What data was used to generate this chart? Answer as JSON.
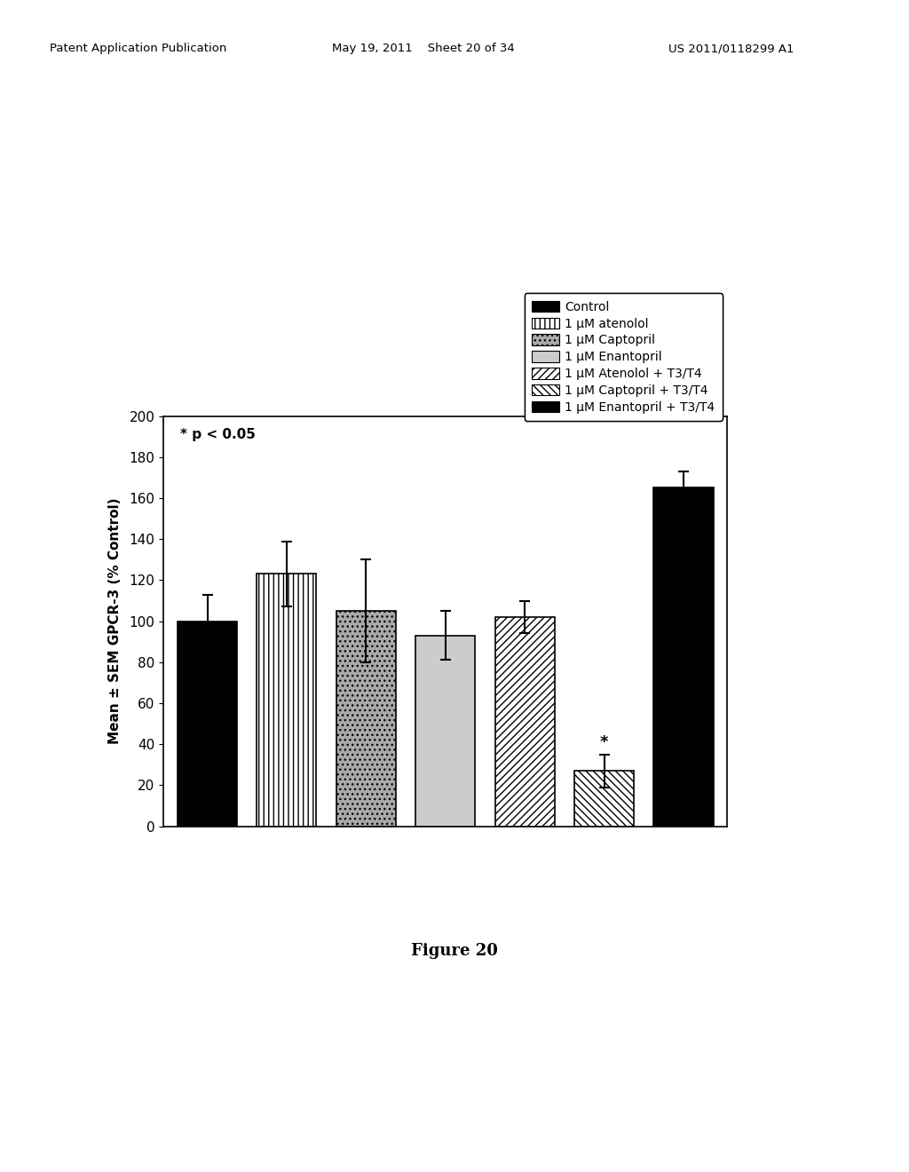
{
  "bars": [
    {
      "label": "Control",
      "value": 100,
      "error": 13,
      "color": "black",
      "hatch": null
    },
    {
      "label": "1 μM atenolol",
      "value": 123,
      "error": 16,
      "color": "white",
      "hatch": "|||"
    },
    {
      "label": "1 μM Captopril",
      "value": 105,
      "error": 25,
      "color": "darkgray",
      "hatch": "..."
    },
    {
      "label": "1 μM Enantopril",
      "value": 93,
      "error": 12,
      "color": "#cccccc",
      "hatch": null
    },
    {
      "label": "1 μM Atenolol + T3/T4",
      "value": 102,
      "error": 8,
      "color": "white",
      "hatch": "////"
    },
    {
      "label": "1 μM Captopril + T3/T4",
      "value": 27,
      "error": 8,
      "color": "white",
      "hatch": "\\\\\\\\"
    },
    {
      "label": "1 μM Enantopril + T3/T4",
      "value": 165,
      "error": 8,
      "color": "black",
      "hatch": null
    }
  ],
  "ylim": [
    0,
    200
  ],
  "yticks": [
    0,
    20,
    40,
    60,
    80,
    100,
    120,
    140,
    160,
    180,
    200
  ],
  "ylabel": "Mean ± SEM GPCR-3 (% Control)",
  "annotation_text": "* p < 0.05",
  "star_bars": [
    5
  ],
  "figure_label": "Figure 20",
  "background_color": "#ffffff",
  "bar_width": 0.75,
  "legend_entries": [
    {
      "label": "Control",
      "color": "black",
      "hatch": null
    },
    {
      "label": "1 μM atenolol",
      "color": "white",
      "hatch": "|||"
    },
    {
      "label": "1 μM Captopril",
      "color": "darkgray",
      "hatch": "..."
    },
    {
      "label": "1 μM Enantopril",
      "color": "#cccccc",
      "hatch": null
    },
    {
      "label": "1 μM Atenolol + T3/T4",
      "color": "white",
      "hatch": "////"
    },
    {
      "label": "1 μM Captopril + T3/T4",
      "color": "white",
      "hatch": "\\\\\\\\"
    },
    {
      "label": "1 μM Enantopril + T3/T4",
      "color": "black",
      "hatch": null
    }
  ],
  "header_left": "Patent Application Publication",
  "header_mid": "May 19, 2011    Sheet 20 of 34",
  "header_right": "US 2011/0118299 A1"
}
